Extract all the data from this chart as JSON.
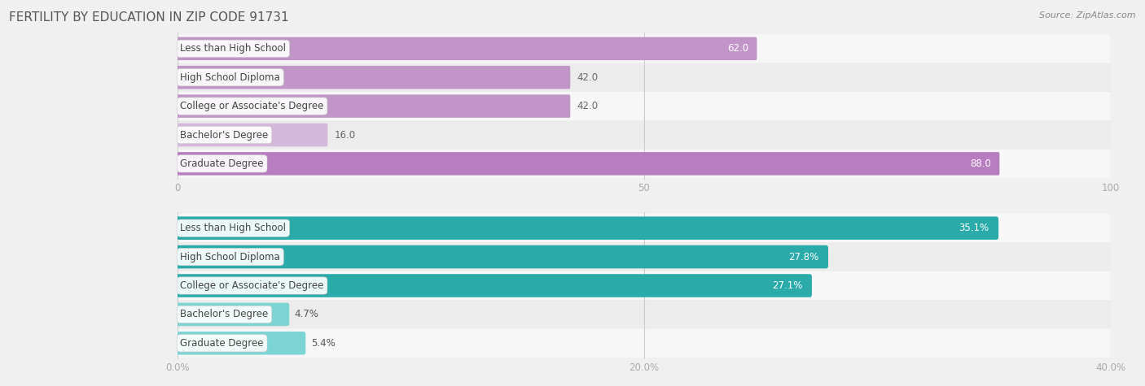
{
  "title": "FERTILITY BY EDUCATION IN ZIP CODE 91731",
  "source": "Source: ZipAtlas.com",
  "top_chart": {
    "categories": [
      "Less than High School",
      "High School Diploma",
      "College or Associate's Degree",
      "Bachelor's Degree",
      "Graduate Degree"
    ],
    "values": [
      62.0,
      42.0,
      42.0,
      16.0,
      88.0
    ],
    "xlim": [
      0,
      100
    ],
    "xticks": [
      0.0,
      50.0,
      100.0
    ],
    "bar_colors": [
      "#c195c8",
      "#c195c8",
      "#c195c8",
      "#d4b8dc",
      "#b87dc0"
    ],
    "value_color_inside": "#ffffff",
    "value_color_outside": "#666666",
    "label_inside": [
      true,
      false,
      false,
      false,
      true
    ],
    "value_labels": [
      "62.0",
      "42.0",
      "42.0",
      "16.0",
      "88.0"
    ]
  },
  "bottom_chart": {
    "categories": [
      "Less than High School",
      "High School Diploma",
      "College or Associate's Degree",
      "Bachelor's Degree",
      "Graduate Degree"
    ],
    "values": [
      35.1,
      27.8,
      27.1,
      4.7,
      5.4
    ],
    "xlim": [
      0,
      40
    ],
    "xticks": [
      0.0,
      20.0,
      40.0
    ],
    "xtick_labels": [
      "0.0%",
      "20.0%",
      "40.0%"
    ],
    "bar_colors": [
      "#2aabaa",
      "#2aabaa",
      "#2aabaa",
      "#7dd4d4",
      "#7dd4d4"
    ],
    "value_color_inside": "#ffffff",
    "value_color_outside": "#555555",
    "label_inside": [
      true,
      true,
      true,
      false,
      false
    ],
    "value_labels": [
      "35.1%",
      "27.8%",
      "27.1%",
      "4.7%",
      "5.4%"
    ]
  },
  "bar_height": 0.62,
  "row_colors": [
    "#f7f7f7",
    "#ececec"
  ],
  "bg_color": "#f0f0f0",
  "label_text_color": "#444444",
  "label_fontsize": 8.5,
  "value_fontsize": 8.5,
  "title_fontsize": 11,
  "axis_tick_fontsize": 8.5,
  "label_pill_color": "#ffffff",
  "label_pill_alpha": 0.92
}
